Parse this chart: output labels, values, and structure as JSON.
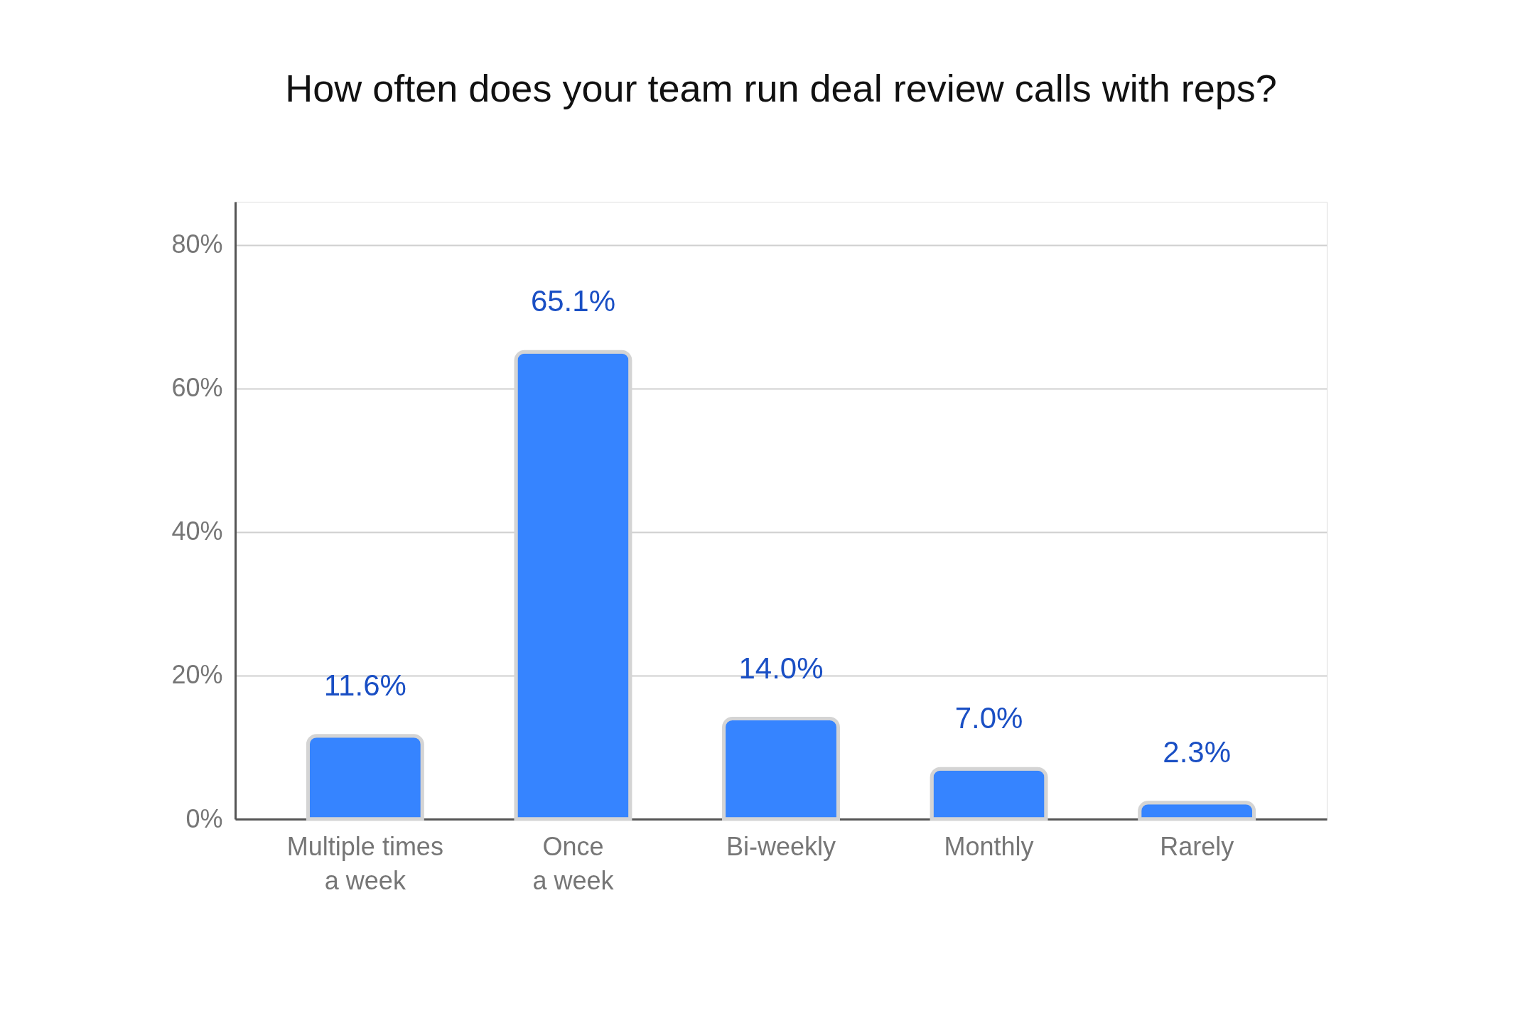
{
  "chart_data": {
    "type": "bar",
    "title": "How often does your team run deal review calls with reps?",
    "categories": [
      "Multiple times\na week",
      "Once\na week",
      "Bi-weekly",
      "Monthly",
      "Rarely"
    ],
    "values": [
      11.6,
      65.1,
      14.0,
      7.0,
      2.3
    ],
    "color": "#3684ff",
    "ylim": [
      0,
      86
    ],
    "yticks": [
      {
        "value": 0,
        "label": "0%"
      },
      {
        "value": 20,
        "label": "20%"
      },
      {
        "value": 40,
        "label": "40%"
      },
      {
        "value": 60,
        "label": "60%"
      },
      {
        "value": 80,
        "label": "80%"
      }
    ],
    "grid": "y",
    "value_labels": [
      "11.6%",
      "65.1%",
      "14.0%",
      "7.0%",
      "2.3%"
    ]
  }
}
